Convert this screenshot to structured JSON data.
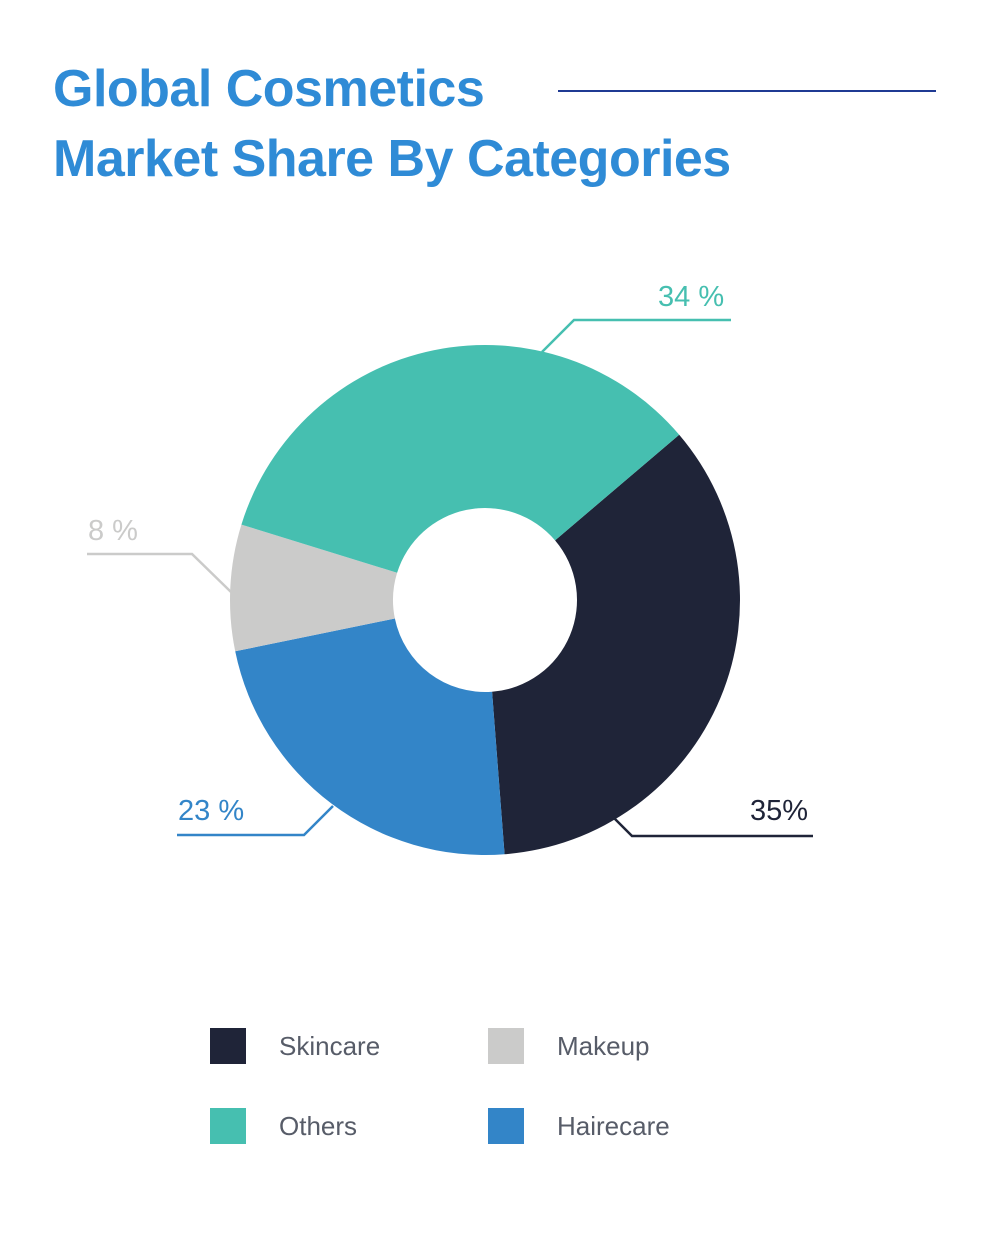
{
  "title": {
    "line1": "Global Cosmetics",
    "line2": "Market Share By Categories",
    "color": "#2f8bd6",
    "rule_color": "#1f3a93"
  },
  "chart_data": {
    "type": "pie",
    "variant": "donut",
    "title": "Global Cosmetics Market Share By Categories",
    "categories": [
      "Skincare",
      "Haircare",
      "Makeup",
      "Others"
    ],
    "series": [
      {
        "name": "Market Share",
        "values": [
          35,
          23,
          8,
          34
        ],
        "labels": [
          "35%",
          "23 %",
          "8 %",
          "34 %"
        ],
        "colors": [
          "#1f2438",
          "#3385c8",
          "#cbcbca",
          "#46bfb0"
        ]
      }
    ],
    "legend": {
      "position": "bottom",
      "entries": [
        {
          "label": "Skincare",
          "color": "#1f2438"
        },
        {
          "label": "Makeup",
          "color": "#cbcbca"
        },
        {
          "label": "Others",
          "color": "#46bfb0"
        },
        {
          "label": "Hairecare",
          "color": "#3385c8"
        }
      ]
    },
    "start_angle_deg": 49.6,
    "direction": "clockwise",
    "units": "%"
  },
  "slices": [
    {
      "name": "Skincare",
      "value": 35,
      "label": "35%",
      "color": "#1f2438"
    },
    {
      "name": "Haircare",
      "value": 23,
      "label": "23 %",
      "color": "#3385c8"
    },
    {
      "name": "Makeup",
      "value": 8,
      "label": "8 %",
      "color": "#cbcbca"
    },
    {
      "name": "Others",
      "value": 34,
      "label": "34 %",
      "color": "#46bfb0"
    }
  ],
  "legend": [
    {
      "label": "Skincare",
      "color": "#1f2438"
    },
    {
      "label": "Makeup",
      "color": "#cbcbca"
    },
    {
      "label": "Others",
      "color": "#46bfb0"
    },
    {
      "label": "Hairecare",
      "color": "#3385c8"
    }
  ]
}
